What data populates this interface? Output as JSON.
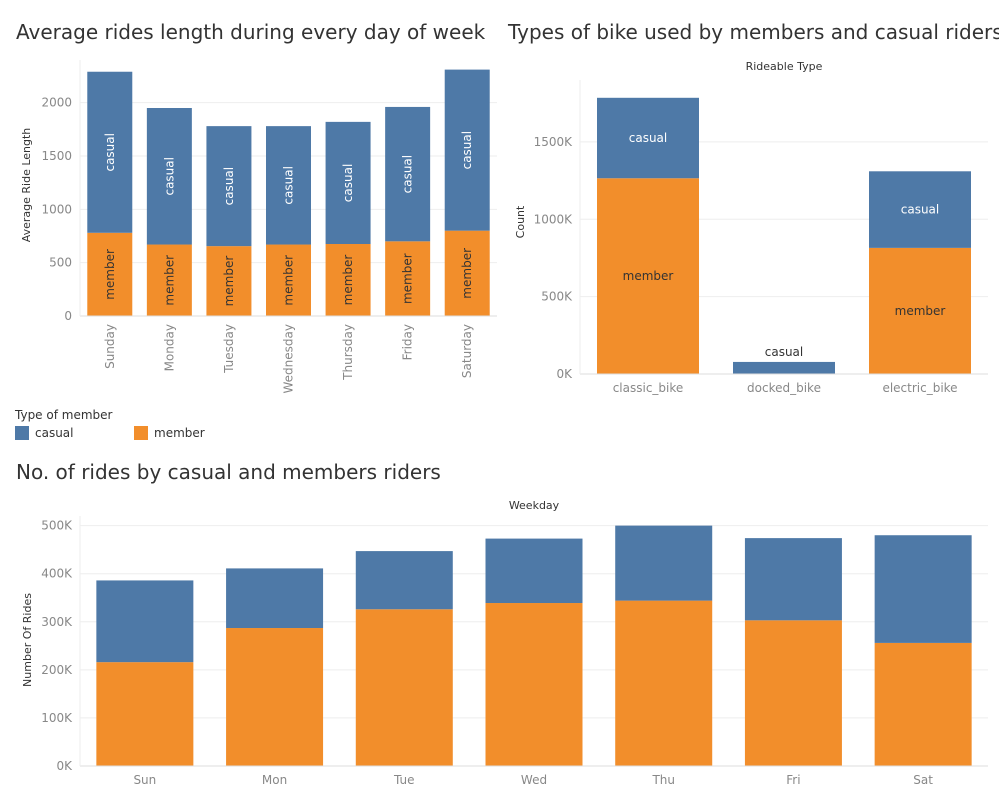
{
  "titles": {
    "avg_length": "Average rides length during every day of week",
    "bike_types": "Types of bike used by members and casual riders",
    "rides_count": "No. of rides by casual and members riders"
  },
  "legend": {
    "title": "Type of member",
    "items": [
      {
        "label": "casual",
        "color": "#4e79a7"
      },
      {
        "label": "member",
        "color": "#f28e2b"
      }
    ]
  },
  "colors": {
    "casual": "#4e79a7",
    "member": "#f28e2b",
    "grid": "#eeeeee",
    "axis_text": "#888888",
    "label_text": "#333333"
  },
  "chart_data": [
    {
      "id": "avg_length",
      "type": "bar",
      "stacked": true,
      "title": "Average rides length during every day of week",
      "xlabel": "",
      "ylabel": "Average Ride Length",
      "ylim": [
        0,
        2400
      ],
      "yticks": [
        0,
        500,
        1000,
        1500,
        2000
      ],
      "ytick_labels": [
        "0",
        "500",
        "1000",
        "1500",
        "2000"
      ],
      "categories": [
        "Sunday",
        "Monday",
        "Tuesday",
        "Wednesday",
        "Thursday",
        "Friday",
        "Saturday"
      ],
      "series": [
        {
          "name": "member",
          "values": [
            780,
            670,
            655,
            670,
            675,
            700,
            800
          ],
          "labels": [
            "member",
            "member",
            "member",
            "member",
            "member",
            "member",
            "member"
          ]
        },
        {
          "name": "casual",
          "values": [
            1510,
            1280,
            1125,
            1110,
            1145,
            1260,
            1510
          ],
          "labels": [
            "casual",
            "casual",
            "casual",
            "casual",
            "casual",
            "casual",
            "casual"
          ]
        }
      ],
      "grid": true,
      "legend": "bottom-left"
    },
    {
      "id": "bike_types",
      "type": "bar",
      "stacked": true,
      "title": "Types of bike used by members and casual riders",
      "header": "Rideable Type",
      "xlabel": "",
      "ylabel": "Count",
      "ylim": [
        0,
        1900000
      ],
      "yticks": [
        0,
        500000,
        1000000,
        1500000
      ],
      "ytick_labels": [
        "0K",
        "500K",
        "1000K",
        "1500K"
      ],
      "categories": [
        "classic_bike",
        "docked_bike",
        "electric_bike"
      ],
      "series": [
        {
          "name": "member",
          "values": [
            1265000,
            0,
            815000
          ],
          "labels": [
            "member",
            "",
            "member"
          ]
        },
        {
          "name": "casual",
          "values": [
            520000,
            78000,
            495000
          ],
          "labels": [
            "casual",
            "casual",
            "casual"
          ]
        }
      ],
      "grid": true
    },
    {
      "id": "rides_count",
      "type": "bar",
      "stacked": true,
      "title": "No. of rides by casual and members riders",
      "header": "Weekday",
      "xlabel": "",
      "ylabel": "Number Of Rides",
      "ylim": [
        0,
        520000
      ],
      "yticks": [
        0,
        100000,
        200000,
        300000,
        400000,
        500000
      ],
      "ytick_labels": [
        "0K",
        "100K",
        "200K",
        "300K",
        "400K",
        "500K"
      ],
      "categories": [
        "Sun",
        "Mon",
        "Tue",
        "Wed",
        "Thu",
        "Fri",
        "Sat"
      ],
      "series": [
        {
          "name": "member",
          "values": [
            216000,
            287000,
            326000,
            339000,
            344000,
            303000,
            256000
          ]
        },
        {
          "name": "casual",
          "values": [
            170000,
            124000,
            121000,
            134000,
            156000,
            171000,
            224000
          ]
        }
      ],
      "grid": true
    }
  ]
}
